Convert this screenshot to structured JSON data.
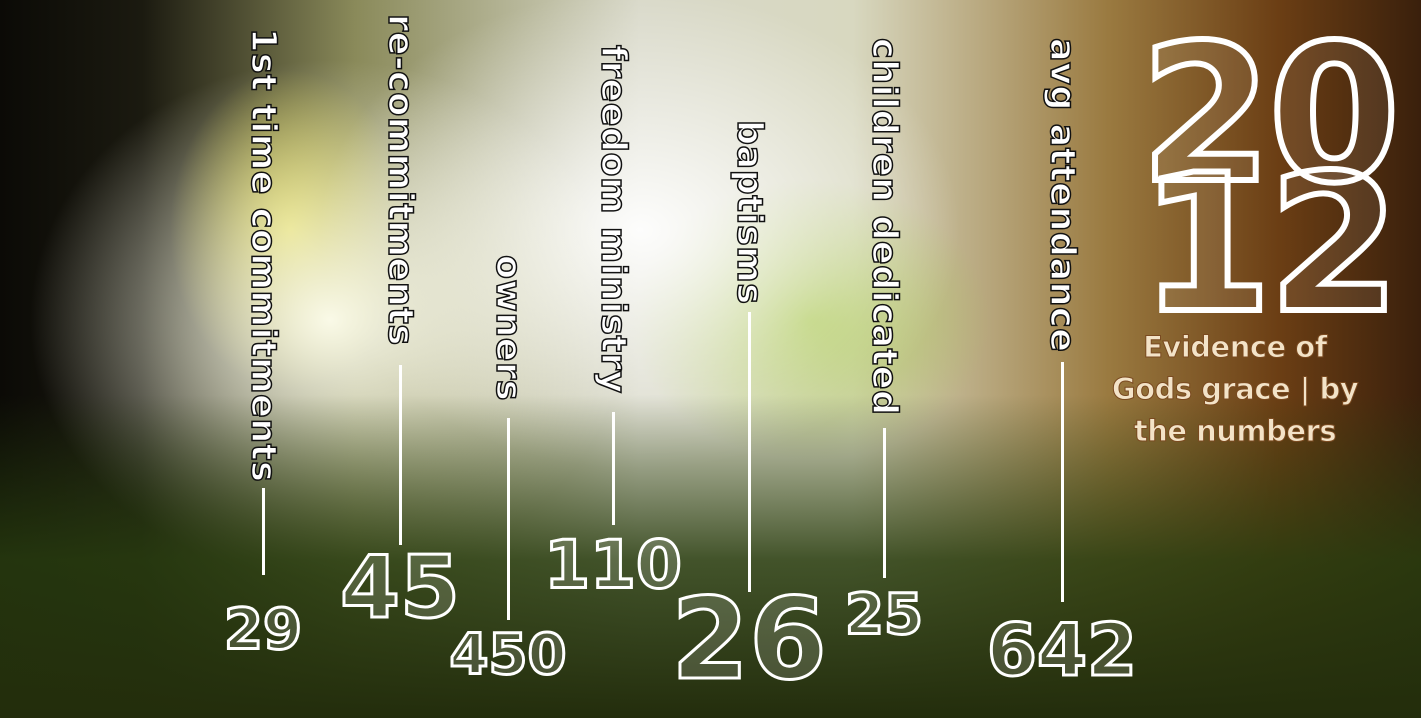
{
  "title": {
    "top": "20",
    "bottom": "12"
  },
  "subtitle": {
    "lines": [
      "Evidence of",
      "Gods grace | by",
      "the numbers"
    ]
  },
  "stats": [
    {
      "label": "1st time commitments",
      "value": 29
    },
    {
      "label": "re-commitments",
      "value": 45
    },
    {
      "label": "owners",
      "value": 450
    },
    {
      "label": "freedom ministry",
      "value": 110
    },
    {
      "label": "baptisms",
      "value": 26
    },
    {
      "label": "children dedicated",
      "value": 25
    },
    {
      "label": "avg attendance",
      "value": 642
    }
  ]
}
